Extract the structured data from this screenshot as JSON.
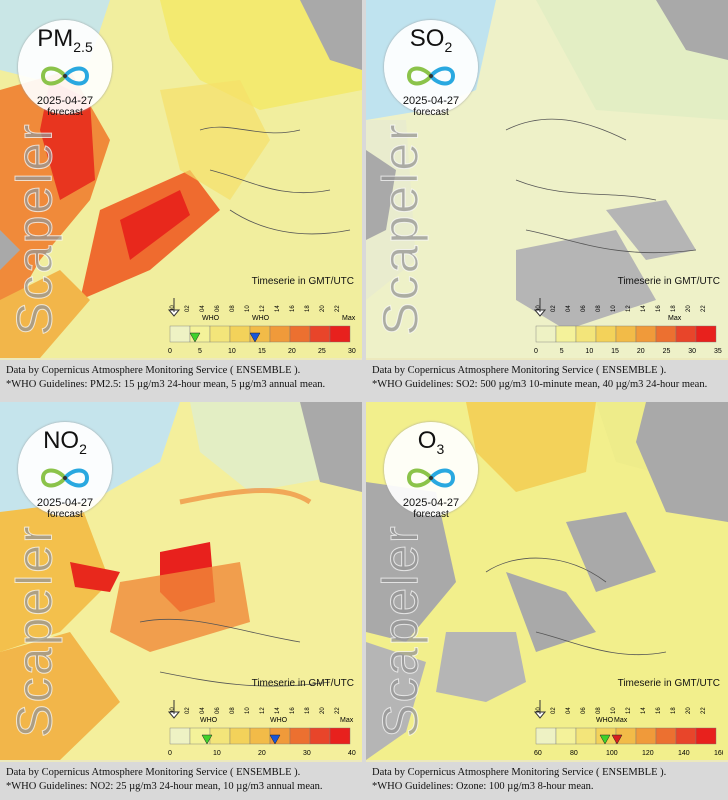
{
  "panels": [
    {
      "pollutant": "PM",
      "pollutant_sub": "2.5",
      "date": "2025-04-27",
      "status": "forecast",
      "watermark": "Scapeler",
      "timeseries_label": "Timeserie in GMT/UTC",
      "hours": [
        "00",
        "02",
        "04",
        "06",
        "08",
        "10",
        "12",
        "14",
        "16",
        "18",
        "20",
        "22"
      ],
      "scale_ticks": [
        "0",
        "5",
        "10",
        "15",
        "20",
        "25",
        "30"
      ],
      "who_label": "WHO",
      "max_label": "Max",
      "caption_line1": "Data by Copernicus Atmosphere Monitoring Service ( ENSEMBLE ).",
      "caption_line2": "*WHO Guidelines: PM2.5: 15 µg/m3 24-hour mean, 5 µg/m3 annual mean."
    },
    {
      "pollutant": "SO",
      "pollutant_sub": "2",
      "date": "2025-04-27",
      "status": "forecast",
      "watermark": "Scapeler",
      "timeseries_label": "Timeserie in GMT/UTC",
      "hours": [
        "00",
        "02",
        "04",
        "06",
        "08",
        "10",
        "12",
        "14",
        "16",
        "18",
        "20",
        "22"
      ],
      "scale_ticks": [
        "0",
        "5",
        "10",
        "15",
        "20",
        "25",
        "30",
        "35"
      ],
      "who_label": "",
      "max_label": "Max",
      "caption_line1": "Data by Copernicus Atmosphere Monitoring Service ( ENSEMBLE ).",
      "caption_line2": "*WHO Guidelines: SO2: 500 µg/m3 10-minute mean, 40 µg/m3 24-hour mean."
    },
    {
      "pollutant": "NO",
      "pollutant_sub": "2",
      "date": "2025-04-27",
      "status": "forecast",
      "watermark": "Scapeler",
      "timeseries_label": "Timeserie in GMT/UTC",
      "hours": [
        "00",
        "02",
        "04",
        "06",
        "08",
        "10",
        "12",
        "14",
        "16",
        "18",
        "20",
        "22"
      ],
      "scale_ticks": [
        "0",
        "10",
        "20",
        "30",
        "40"
      ],
      "who_label": "WHO",
      "max_label": "Max",
      "caption_line1": "Data by Copernicus Atmosphere Monitoring Service ( ENSEMBLE ).",
      "caption_line2": "*WHO Guidelines: NO2: 25 µg/m3 24-hour mean, 10 µg/m3 annual mean."
    },
    {
      "pollutant": "O",
      "pollutant_sub": "3",
      "date": "2025-04-27",
      "status": "forecast",
      "watermark": "Scapeler",
      "timeseries_label": "Timeserie in GMT/UTC",
      "hours": [
        "00",
        "02",
        "04",
        "06",
        "08",
        "10",
        "12",
        "14",
        "16",
        "18",
        "20",
        "22"
      ],
      "scale_ticks": [
        "60",
        "80",
        "100",
        "120",
        "140",
        "160"
      ],
      "who_label": "WHO",
      "max_label": "Max",
      "caption_line1": "Data by Copernicus Atmosphere Monitoring Service ( ENSEMBLE ).",
      "caption_line2": "*WHO Guidelines: Ozone: 100 µg/m3 8-hour mean."
    }
  ],
  "colors": {
    "sea": "#bfe3ef",
    "land_grey": "#a9a9a9",
    "low": "#f5f2b0",
    "mid": "#f3d25a",
    "high": "#ef5a2a",
    "max": "#e8211d",
    "who_green": "#3fd12b",
    "who_blue": "#1a55d8",
    "who_red": "#d81e1e"
  },
  "icons": [
    "infinity-logo-icon",
    "time-arrow-icon",
    "who-marker-icon"
  ]
}
